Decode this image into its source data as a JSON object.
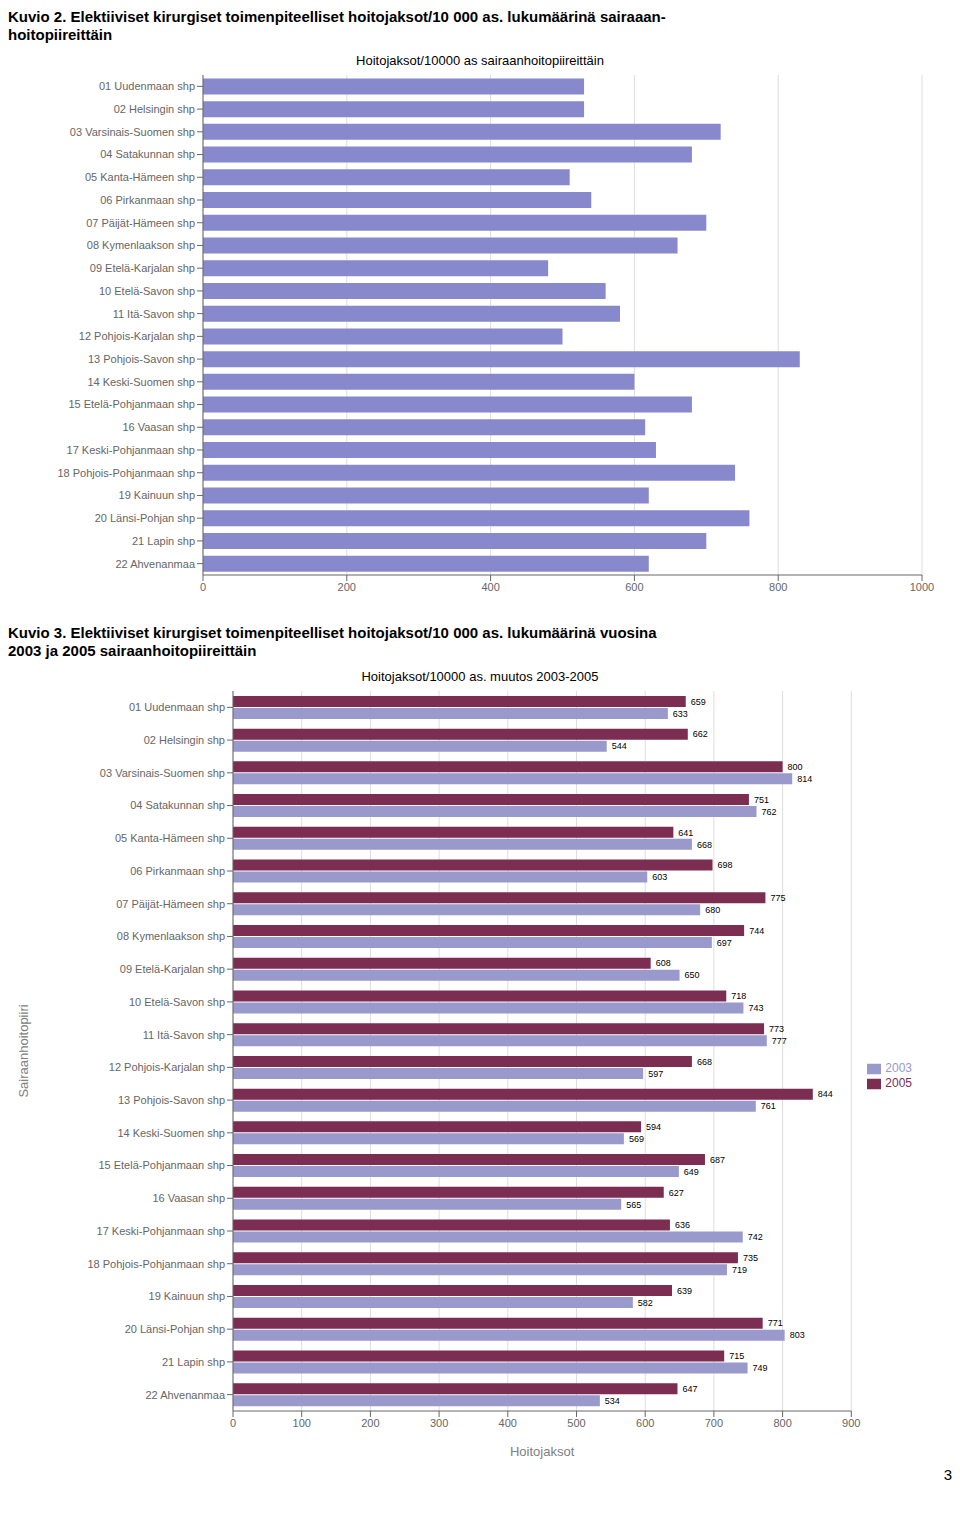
{
  "chart_data": [
    {
      "type": "bar",
      "orientation": "horizontal",
      "title": "Hoitojaksot/10000 as sairaanhoitopiireittäin",
      "annotations": [
        "Kuvio 2. Elektiiviset kirurgiset toimenpiteelliset hoitojaksot/10 000 as. lukumäärinä sairaaan-",
        "hoitopiireittäin"
      ],
      "categories": [
        "01 Uudenmaan shp",
        "02 Helsingin shp",
        "03 Varsinais-Suomen shp",
        "04 Satakunnan shp",
        "05 Kanta-Hämeen shp",
        "06 Pirkanmaan shp",
        "07 Päijät-Hämeen shp",
        "08 Kymenlaakson shp",
        "09 Etelä-Karjalan shp",
        "10 Etelä-Savon shp",
        "11 Itä-Savon shp",
        "12 Pohjois-Karjalan shp",
        "13 Pohjois-Savon shp",
        "14 Keski-Suomen shp",
        "15 Etelä-Pohjanmaan shp",
        "16 Vaasan shp",
        "17 Keski-Pohjanmaan shp",
        "18 Pohjois-Pohjanmaan shp",
        "19 Kainuun shp",
        "20 Länsi-Pohjan shp",
        "21 Lapin shp",
        "22 Ahvenanmaa"
      ],
      "values": [
        530,
        530,
        720,
        680,
        510,
        540,
        700,
        660,
        480,
        560,
        580,
        500,
        830,
        600,
        680,
        615,
        630,
        740,
        620,
        760,
        700,
        620
      ],
      "color": "#8888cc",
      "xlim": [
        0,
        1000
      ],
      "xticks": [
        0,
        200,
        400,
        600,
        800,
        1000
      ],
      "grid": true
    },
    {
      "type": "bar",
      "orientation": "horizontal",
      "title": "Hoitojaksot/10000 as. muutos 2003-2005",
      "annotations": [
        "Kuvio 3. Elektiiviset kirurgiset toimenpiteelliset hoitojaksot/10 000 as. lukumäärinä vuosina",
        "2003 ja 2005 sairaanhoitopiireittäin"
      ],
      "xlabel": "Hoitojaksot",
      "ylabel": "Sairaanhoitopiiri",
      "categories": [
        "01 Uudenmaan shp",
        "02 Helsingin shp",
        "03 Varsinais-Suomen shp",
        "04 Satakunnan shp",
        "05 Kanta-Hämeen shp",
        "06 Pirkanmaan shp",
        "07 Päijät-Hämeen shp",
        "08 Kymenlaakson shp",
        "09 Etelä-Karjalan shp",
        "10 Etelä-Savon shp",
        "11 Itä-Savon shp",
        "12 Pohjois-Karjalan shp",
        "13 Pohjois-Savon shp",
        "14 Keski-Suomen shp",
        "15 Etelä-Pohjanmaan shp",
        "16 Vaasan shp",
        "17 Keski-Pohjanmaan shp",
        "18 Pohjois-Pohjanmaan shp",
        "19 Kainuun shp",
        "20 Länsi-Pohjan shp",
        "21 Lapin shp",
        "22 Ahvenanmaa"
      ],
      "series": [
        {
          "name": "2005",
          "color": "#7b2d52",
          "values": [
            659,
            662,
            800,
            751,
            641,
            698,
            775,
            744,
            608,
            718,
            773,
            668,
            844,
            594,
            687,
            627,
            636,
            735,
            639,
            771,
            715,
            647
          ]
        },
        {
          "name": "2003",
          "color": "#9999cc",
          "values": [
            633,
            544,
            814,
            762,
            668,
            603,
            680,
            697,
            650,
            743,
            777,
            597,
            761,
            569,
            649,
            565,
            742,
            719,
            582,
            803,
            749,
            534
          ]
        }
      ],
      "xlim": [
        0,
        900
      ],
      "xticks": [
        0,
        100,
        200,
        300,
        400,
        500,
        600,
        700,
        800,
        900
      ],
      "grid": true,
      "data_labels": true,
      "legend": "right"
    }
  ],
  "annotations": [
    "3"
  ]
}
